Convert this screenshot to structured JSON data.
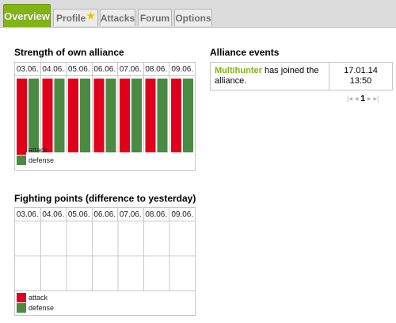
{
  "tabs": [
    {
      "label": "Overview",
      "active": true
    },
    {
      "label": "Profile",
      "active": false,
      "icon": "star-icon"
    },
    {
      "label": "Attacks",
      "active": false
    },
    {
      "label": "Forum",
      "active": false
    },
    {
      "label": "Options",
      "active": false
    }
  ],
  "strength": {
    "title": "Strength of own alliance",
    "dates": [
      "03.06.",
      "04.06.",
      "05.06.",
      "06.06.",
      "07.06.",
      "08.06.",
      "09.06."
    ],
    "legend": [
      {
        "label": "attack",
        "color": "#e0001b"
      },
      {
        "label": "defense",
        "color": "#4b8a43"
      }
    ]
  },
  "chart_data": [
    {
      "type": "bar",
      "title": "Strength of own alliance",
      "categories": [
        "03.06.",
        "04.06.",
        "05.06.",
        "06.06.",
        "07.06.",
        "08.06.",
        "09.06."
      ],
      "series": [
        {
          "name": "attack",
          "values": [
            1,
            1,
            1,
            1,
            1,
            1,
            1
          ]
        },
        {
          "name": "defense",
          "values": [
            1,
            1,
            1,
            1,
            1,
            1,
            1
          ]
        }
      ],
      "ylim": [
        0,
        1
      ]
    },
    {
      "type": "bar",
      "title": "Fighting points (difference to yesterday)",
      "categories": [
        "03.06.",
        "04.06.",
        "05.06.",
        "06.06.",
        "07.06.",
        "08.06.",
        "09.06."
      ],
      "series": [
        {
          "name": "attack",
          "values": [
            0,
            0,
            0,
            0,
            0,
            0,
            0
          ]
        },
        {
          "name": "defense",
          "values": [
            0,
            0,
            0,
            0,
            0,
            0,
            0
          ]
        }
      ]
    }
  ],
  "fighting": {
    "title": "Fighting points (difference to yesterday)",
    "dates": [
      "03.06.",
      "04.06.",
      "05.06.",
      "06.06.",
      "07.06.",
      "08.06.",
      "09.06."
    ],
    "legend": [
      {
        "label": "attack",
        "color": "#e0001b"
      },
      {
        "label": "defense",
        "color": "#4b8a43"
      }
    ]
  },
  "events": {
    "title": "Alliance events",
    "rows": [
      {
        "name": "Multihunter",
        "text": " has joined the alliance.",
        "date": "17.01.14",
        "time": "13:50"
      }
    ],
    "pager": {
      "current": "1"
    }
  }
}
